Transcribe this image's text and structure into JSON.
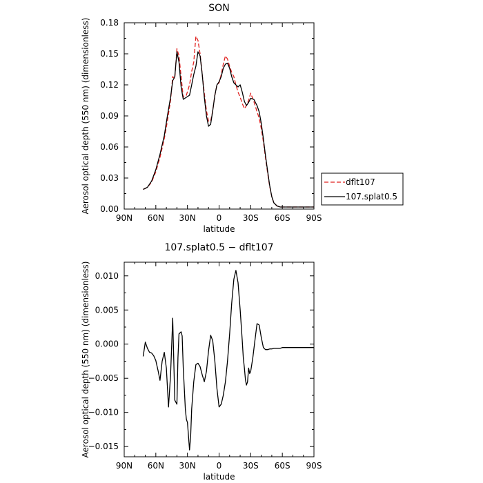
{
  "chart_data": [
    {
      "type": "line",
      "title": "SON",
      "xlabel": "latitude",
      "ylabel": "Aerosol optical depth (550 nm) (dimensionless)",
      "xlim": [
        90,
        -90
      ],
      "ylim": [
        0,
        0.18
      ],
      "xticks": [
        90,
        60,
        30,
        0,
        -30,
        -60,
        -90
      ],
      "xtick_labels": [
        "90N",
        "60N",
        "30N",
        "0",
        "30S",
        "60S",
        "90S"
      ],
      "yticks": [
        0,
        0.03,
        0.06,
        0.09,
        0.12,
        0.15,
        0.18
      ],
      "ytick_labels": [
        "0.00",
        "0.03",
        "0.06",
        "0.09",
        "0.12",
        "0.15",
        "0.18"
      ],
      "legend_position": "right",
      "series": [
        {
          "name": "dflt107",
          "color": "#e0201e",
          "dash": "dashed",
          "x": [
            72,
            68,
            64,
            60,
            56,
            52,
            49,
            46,
            44,
            42,
            40,
            38,
            36,
            34,
            31,
            28,
            26,
            24,
            22,
            20,
            18,
            16,
            14,
            12,
            10,
            8,
            6,
            4,
            2,
            0,
            -2,
            -4,
            -6,
            -8,
            -10,
            -12,
            -14,
            -16,
            -18,
            -20,
            -22,
            -24,
            -26,
            -28,
            -30,
            -33,
            -36,
            -38,
            -40,
            -42,
            -44,
            -46,
            -48,
            -50,
            -52,
            -55,
            -58,
            -61,
            -64,
            -67,
            -70,
            -75,
            -80,
            -85,
            -90
          ],
          "y": [
            0.019,
            0.021,
            0.026,
            0.036,
            0.05,
            0.068,
            0.085,
            0.105,
            0.128,
            0.126,
            0.155,
            0.148,
            0.128,
            0.108,
            0.11,
            0.12,
            0.133,
            0.142,
            0.167,
            0.163,
            0.15,
            0.13,
            0.112,
            0.095,
            0.085,
            0.085,
            0.095,
            0.11,
            0.12,
            0.122,
            0.13,
            0.14,
            0.148,
            0.145,
            0.138,
            0.132,
            0.128,
            0.12,
            0.113,
            0.108,
            0.102,
            0.097,
            0.1,
            0.105,
            0.112,
            0.104,
            0.094,
            0.088,
            0.078,
            0.065,
            0.05,
            0.035,
            0.022,
            0.012,
            0.006,
            0.003,
            0.002,
            0.002,
            0.002,
            0.002,
            0.002,
            0.002,
            0.002,
            0.002,
            0.002
          ]
        },
        {
          "name": "107.splat0.5",
          "color": "#000000",
          "dash": "solid",
          "x": [
            72,
            68,
            64,
            60,
            56,
            52,
            49,
            46,
            44,
            42,
            40,
            38,
            36,
            34,
            31,
            28,
            26,
            24,
            22,
            20,
            18,
            16,
            14,
            12,
            10,
            8,
            6,
            4,
            2,
            0,
            -2,
            -4,
            -6,
            -8,
            -10,
            -12,
            -14,
            -16,
            -18,
            -20,
            -22,
            -24,
            -26,
            -28,
            -30,
            -33,
            -36,
            -38,
            -40,
            -42,
            -44,
            -46,
            -48,
            -50,
            -52,
            -55,
            -58,
            -61,
            -64,
            -67,
            -70,
            -75,
            -80,
            -85,
            -90
          ],
          "y": [
            0.019,
            0.021,
            0.027,
            0.038,
            0.053,
            0.071,
            0.09,
            0.108,
            0.124,
            0.128,
            0.152,
            0.142,
            0.118,
            0.106,
            0.108,
            0.11,
            0.12,
            0.13,
            0.138,
            0.152,
            0.148,
            0.13,
            0.108,
            0.09,
            0.08,
            0.082,
            0.095,
            0.11,
            0.12,
            0.123,
            0.128,
            0.136,
            0.14,
            0.141,
            0.136,
            0.128,
            0.122,
            0.12,
            0.118,
            0.12,
            0.113,
            0.104,
            0.1,
            0.103,
            0.107,
            0.106,
            0.1,
            0.094,
            0.083,
            0.068,
            0.052,
            0.037,
            0.023,
            0.012,
            0.006,
            0.003,
            0.002,
            0.002,
            0.002,
            0.002,
            0.002,
            0.002,
            0.002,
            0.002,
            0.002
          ]
        }
      ]
    },
    {
      "type": "line",
      "title": "107.splat0.5 − dflt107",
      "xlabel": "latitude",
      "ylabel": "Aerosol optical depth (550 nm) (dimensionless)",
      "xlim": [
        90,
        -90
      ],
      "ylim": [
        -0.0165,
        0.012
      ],
      "xticks": [
        90,
        60,
        30,
        0,
        -30,
        -60,
        -90
      ],
      "xtick_labels": [
        "90N",
        "60N",
        "30N",
        "0",
        "30S",
        "60S",
        "90S"
      ],
      "yticks": [
        -0.015,
        -0.01,
        -0.005,
        0,
        0.005,
        0.01
      ],
      "ytick_labels": [
        "−0.015",
        "−0.010",
        "−0.005",
        "0.000",
        "0.005",
        "0.010"
      ],
      "series": [
        {
          "name": "",
          "color": "#000000",
          "dash": "solid",
          "x": [
            72,
            70,
            68,
            66,
            64,
            62,
            60,
            58,
            56,
            54,
            52,
            50,
            48,
            46,
            44,
            42,
            40,
            39,
            38,
            36,
            35,
            34,
            32,
            31,
            30,
            28,
            27,
            26,
            24,
            22,
            20,
            18,
            16,
            14,
            12,
            10,
            8,
            6,
            4,
            2,
            0,
            -2,
            -4,
            -6,
            -8,
            -10,
            -12,
            -14,
            -16,
            -18,
            -20,
            -22,
            -23,
            -24,
            -25,
            -26,
            -27,
            -28,
            -29,
            -30,
            -32,
            -34,
            -36,
            -38,
            -40,
            -42,
            -44,
            -46,
            -48,
            -50,
            -52,
            -54,
            -56,
            -58,
            -60,
            -62,
            -64,
            -66,
            -68,
            -70,
            -72,
            -74,
            -76,
            -78,
            -80,
            -82,
            -84,
            -86,
            -88,
            -90
          ],
          "y": [
            -0.0018,
            0.0003,
            -0.0006,
            -0.0012,
            -0.0013,
            -0.0017,
            -0.0024,
            -0.0038,
            -0.0053,
            -0.0025,
            -0.0012,
            -0.0035,
            -0.0092,
            -0.0045,
            0.0038,
            -0.0082,
            -0.0088,
            -0.002,
            0.0015,
            0.0018,
            0.0012,
            -0.0035,
            -0.0095,
            -0.011,
            -0.0115,
            -0.0155,
            -0.0135,
            -0.0095,
            -0.0055,
            -0.003,
            -0.0028,
            -0.0033,
            -0.0045,
            -0.0055,
            -0.004,
            -0.001,
            0.0013,
            0.0005,
            -0.0025,
            -0.0065,
            -0.0092,
            -0.0088,
            -0.0075,
            -0.0055,
            -0.0025,
            0.0015,
            0.006,
            0.0095,
            0.0108,
            0.009,
            0.005,
            0.0005,
            -0.002,
            -0.0035,
            -0.0052,
            -0.006,
            -0.0055,
            -0.0035,
            -0.0043,
            -0.004,
            -0.002,
            0.0005,
            0.003,
            0.0028,
            0.001,
            -0.0005,
            -0.0008,
            -0.0008,
            -0.0007,
            -0.0007,
            -0.0006,
            -0.0006,
            -0.0006,
            -0.0006,
            -0.0005,
            -0.0005,
            -0.0005,
            -0.0005,
            -0.0005,
            -0.0005,
            -0.0005,
            -0.0005,
            -0.0005,
            -0.0005,
            -0.0005,
            -0.0005,
            -0.0005,
            -0.0005,
            -0.0005,
            -0.0005
          ]
        }
      ]
    }
  ]
}
